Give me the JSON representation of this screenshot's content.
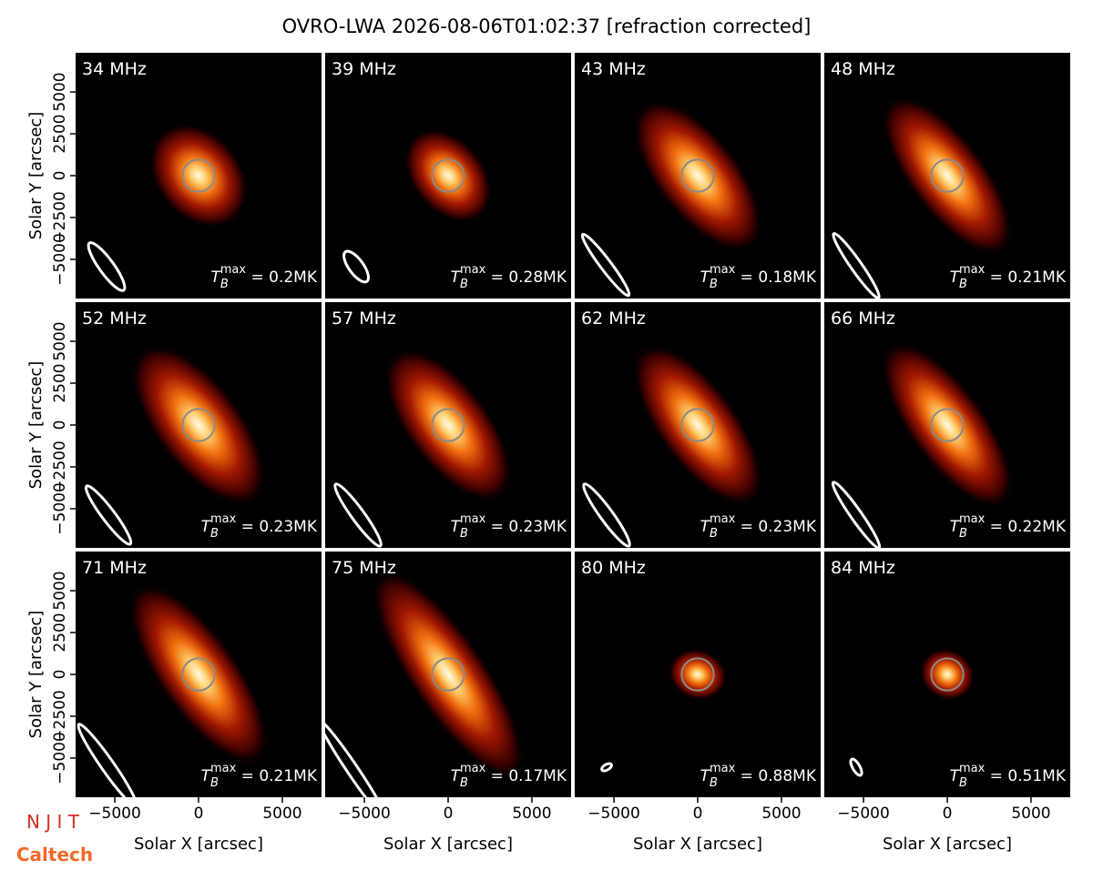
{
  "title": "OVRO-LWA 2026-08-06T01:02:37 [refraction corrected]",
  "logos": [
    "N J I T",
    "Caltech"
  ],
  "chart_data": [
    {
      "type": "image",
      "title": "34 MHz",
      "annotation": {
        "symbol": "T",
        "sub": "B",
        "sup": "max",
        "text": " = 0.2MK"
      },
      "xlim": [
        -7340,
        7340
      ],
      "ylim": [
        -7340,
        7340
      ],
      "ylabel": "Solar Y [arcsec]",
      "yticks": [
        {
          "value": -5000,
          "label": "−5000"
        },
        {
          "value": -2500,
          "label": "−2500"
        },
        0,
        2500,
        5000
      ],
      "sun_radius": 960,
      "source": {
        "major": 3500,
        "minor": 2600,
        "angle": 50
      },
      "beam": {
        "x": -5490,
        "y": -5435,
        "major": 1740,
        "minor": 435,
        "angle": 54
      }
    },
    {
      "type": "image",
      "title": "39 MHz",
      "annotation": {
        "symbol": "T",
        "sub": "B",
        "sup": "max",
        "text": " = 0.28MK"
      },
      "xlim": [
        -7340,
        7340
      ],
      "ylim": [
        -7340,
        7340
      ],
      "sun_radius": 960,
      "source": {
        "major": 3200,
        "minor": 2200,
        "angle": 50
      },
      "beam": {
        "x": -5490,
        "y": -5435,
        "major": 1090,
        "minor": 435,
        "angle": 54
      }
    },
    {
      "type": "image",
      "title": "43 MHz",
      "annotation": {
        "symbol": "T",
        "sub": "B",
        "sup": "max",
        "text": " = 0.18MK"
      },
      "xlim": [
        -7340,
        7340
      ],
      "ylim": [
        -7340,
        7340
      ],
      "sun_radius": 960,
      "source": {
        "major": 5500,
        "minor": 2500,
        "angle": 52
      },
      "beam": {
        "x": -5490,
        "y": -5330,
        "major": 2280,
        "minor": 325,
        "angle": 53
      }
    },
    {
      "type": "image",
      "title": "48 MHz",
      "annotation": {
        "symbol": "T",
        "sub": "B",
        "sup": "max",
        "text": " = 0.21MK"
      },
      "xlim": [
        -7340,
        7340
      ],
      "ylim": [
        -7340,
        7340
      ],
      "sun_radius": 960,
      "source": {
        "major": 5800,
        "minor": 2300,
        "angle": 53
      },
      "beam": {
        "x": -5435,
        "y": -5380,
        "major": 2340,
        "minor": 325,
        "angle": 55
      }
    },
    {
      "type": "image",
      "title": "52 MHz",
      "annotation": {
        "symbol": "T",
        "sub": "B",
        "sup": "max",
        "text": " = 0.23MK"
      },
      "xlim": [
        -7340,
        7340
      ],
      "ylim": [
        -7340,
        7340
      ],
      "ylabel": "Solar Y [arcsec]",
      "yticks": [
        {
          "value": -5000,
          "label": "−5000"
        },
        {
          "value": -2500,
          "label": "−2500"
        },
        0,
        2500,
        5000
      ],
      "sun_radius": 960,
      "source": {
        "major": 5800,
        "minor": 2600,
        "angle": 53
      },
      "beam": {
        "x": -5380,
        "y": -5380,
        "major": 2170,
        "minor": 380,
        "angle": 53
      }
    },
    {
      "type": "image",
      "title": "57 MHz",
      "annotation": {
        "symbol": "T",
        "sub": "B",
        "sup": "max",
        "text": " = 0.23MK"
      },
      "xlim": [
        -7340,
        7340
      ],
      "ylim": [
        -7340,
        7340
      ],
      "sun_radius": 960,
      "source": {
        "major": 5500,
        "minor": 2500,
        "angle": 53
      },
      "beam": {
        "x": -5380,
        "y": -5380,
        "major": 2280,
        "minor": 380,
        "angle": 54
      }
    },
    {
      "type": "image",
      "title": "62 MHz",
      "annotation": {
        "symbol": "T",
        "sub": "B",
        "sup": "max",
        "text": " = 0.23MK"
      },
      "xlim": [
        -7340,
        7340
      ],
      "ylim": [
        -7340,
        7340
      ],
      "sun_radius": 960,
      "source": {
        "major": 5800,
        "minor": 2400,
        "angle": 54
      },
      "beam": {
        "x": -5435,
        "y": -5380,
        "major": 2280,
        "minor": 380,
        "angle": 54
      }
    },
    {
      "type": "image",
      "title": "66 MHz",
      "annotation": {
        "symbol": "T",
        "sub": "B",
        "sup": "max",
        "text": " = 0.22MK"
      },
      "xlim": [
        -7340,
        7340
      ],
      "ylim": [
        -7340,
        7340
      ],
      "sun_radius": 960,
      "source": {
        "major": 6000,
        "minor": 2300,
        "angle": 54
      },
      "beam": {
        "x": -5435,
        "y": -5380,
        "major": 2390,
        "minor": 325,
        "angle": 55
      }
    },
    {
      "type": "image",
      "title": "71 MHz",
      "annotation": {
        "symbol": "T",
        "sub": "B",
        "sup": "max",
        "text": " = 0.21MK"
      },
      "xlim": [
        -7340,
        7340
      ],
      "ylim": [
        -7340,
        7340
      ],
      "xlabel": "Solar X [arcsec]",
      "xticks": [
        {
          "value": -5000,
          "label": "−5000"
        },
        0,
        5000
      ],
      "ylabel": "Solar Y [arcsec]",
      "yticks": [
        {
          "value": -5000,
          "label": "−5000"
        },
        {
          "value": -2500,
          "label": "−2500"
        },
        0,
        2500,
        5000
      ],
      "sun_radius": 960,
      "source": {
        "major": 6500,
        "minor": 2400,
        "angle": 55
      },
      "beam": {
        "x": -5435,
        "y": -5435,
        "major": 2990,
        "minor": 380,
        "angle": 55
      }
    },
    {
      "type": "image",
      "title": "75 MHz",
      "annotation": {
        "symbol": "T",
        "sub": "B",
        "sup": "max",
        "text": " = 0.17MK"
      },
      "xlim": [
        -7340,
        7340
      ],
      "ylim": [
        -7340,
        7340
      ],
      "xlabel": "Solar X [arcsec]",
      "xticks": [
        {
          "value": -5000,
          "label": "−5000"
        },
        0,
        5000
      ],
      "sun_radius": 960,
      "source": {
        "major": 7500,
        "minor": 2300,
        "angle": 56
      },
      "beam": {
        "x": -5700,
        "y": -5700,
        "major": 3530,
        "minor": 325,
        "angle": 56
      }
    },
    {
      "type": "image",
      "title": "80 MHz",
      "annotation": {
        "symbol": "T",
        "sub": "B",
        "sup": "max",
        "text": " = 0.88MK"
      },
      "xlim": [
        -7340,
        7340
      ],
      "ylim": [
        -7340,
        7340
      ],
      "xlabel": "Solar X [arcsec]",
      "xticks": [
        {
          "value": -5000,
          "label": "−5000"
        },
        0,
        5000
      ],
      "sun_radius": 960,
      "source": {
        "major": 1800,
        "minor": 1500,
        "angle": 20
      },
      "beam": {
        "x": -5435,
        "y": -5545,
        "major": 325,
        "minor": 165,
        "angle": -30
      }
    },
    {
      "type": "image",
      "title": "84 MHz",
      "annotation": {
        "symbol": "T",
        "sub": "B",
        "sup": "max",
        "text": " = 0.51MK"
      },
      "xlim": [
        -7340,
        7340
      ],
      "ylim": [
        -7340,
        7340
      ],
      "xlabel": "Solar X [arcsec]",
      "xticks": [
        {
          "value": -5000,
          "label": "−5000"
        },
        0,
        5000
      ],
      "sun_radius": 960,
      "source": {
        "major": 1700,
        "minor": 1500,
        "angle": 30
      },
      "beam": {
        "x": -5435,
        "y": -5545,
        "major": 545,
        "minor": 215,
        "angle": 60
      }
    }
  ]
}
